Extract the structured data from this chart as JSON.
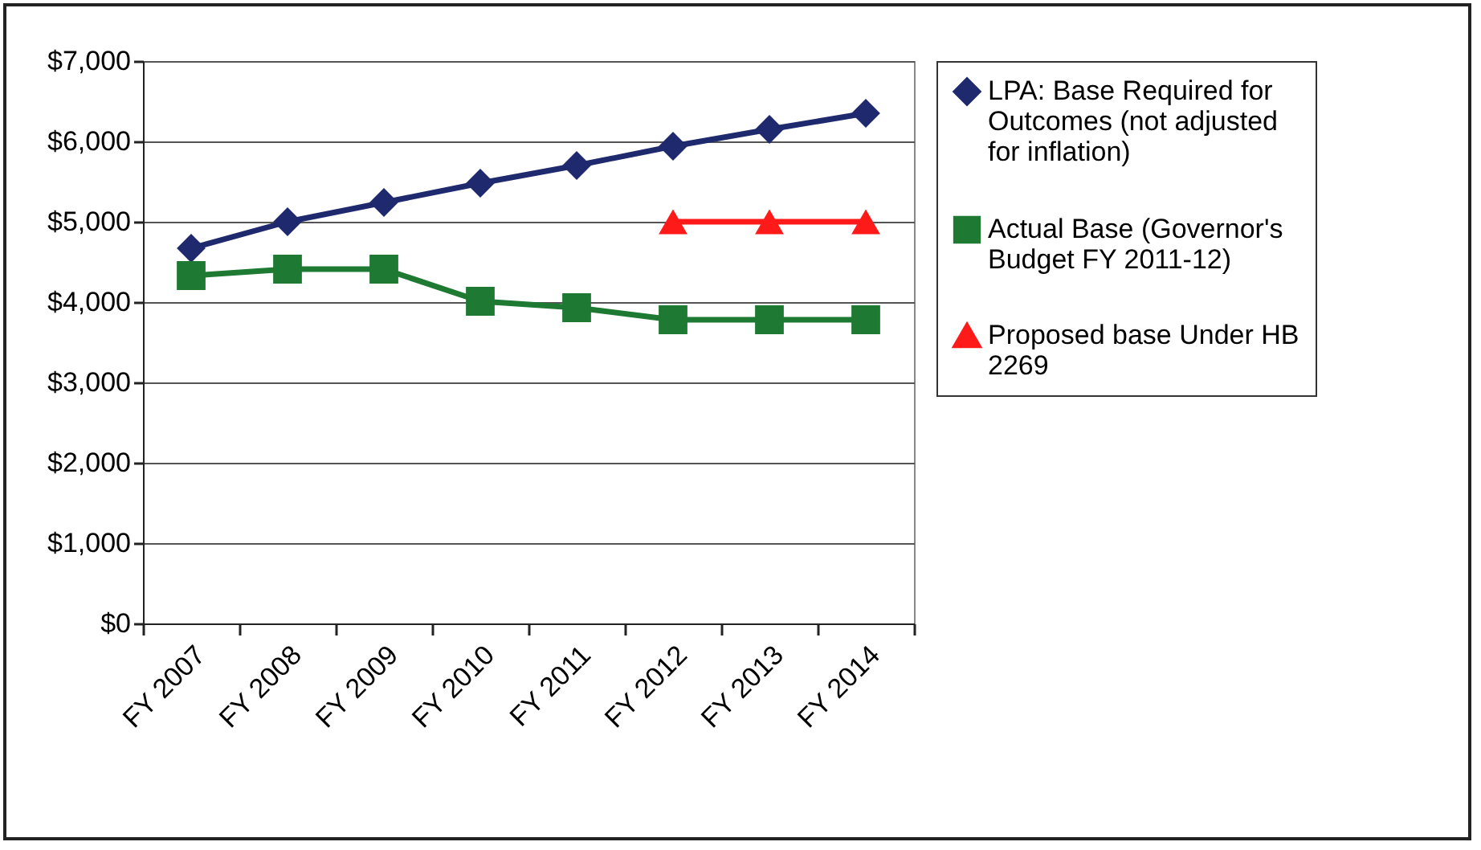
{
  "chart_data": {
    "type": "line",
    "categories": [
      "FY 2007",
      "FY 2008",
      "FY 2009",
      "FY 2010",
      "FY 2011",
      "FY 2012",
      "FY 2013",
      "FY 2014"
    ],
    "series": [
      {
        "name": "LPA: Base Required for Outcomes (not adjusted for inflation)",
        "color": "#1f2a6e",
        "marker": "diamond",
        "values": [
          4670,
          5000,
          5240,
          5480,
          5700,
          5940,
          6150,
          6350
        ]
      },
      {
        "name": "Actual Base (Governor's Budget FY 2011-12)",
        "color": "#1e7a32",
        "marker": "square",
        "values": [
          4330,
          4410,
          4410,
          4010,
          3930,
          3780,
          3780,
          3780
        ]
      },
      {
        "name": "Proposed base Under HB 2269",
        "color": "#ff1a1a",
        "marker": "triangle",
        "values": [
          null,
          null,
          null,
          null,
          null,
          5000,
          5000,
          5000
        ]
      }
    ],
    "ylim": [
      0,
      7000
    ],
    "yticks": [
      {
        "value": 0,
        "label": "$0"
      },
      {
        "value": 1000,
        "label": "$1,000"
      },
      {
        "value": 2000,
        "label": "$2,000"
      },
      {
        "value": 3000,
        "label": "$3,000"
      },
      {
        "value": 4000,
        "label": "$4,000"
      },
      {
        "value": 5000,
        "label": "$5,000"
      },
      {
        "value": 6000,
        "label": "$6,000"
      },
      {
        "value": 7000,
        "label": "$7,000"
      }
    ],
    "grid": "y",
    "legend": "right"
  }
}
